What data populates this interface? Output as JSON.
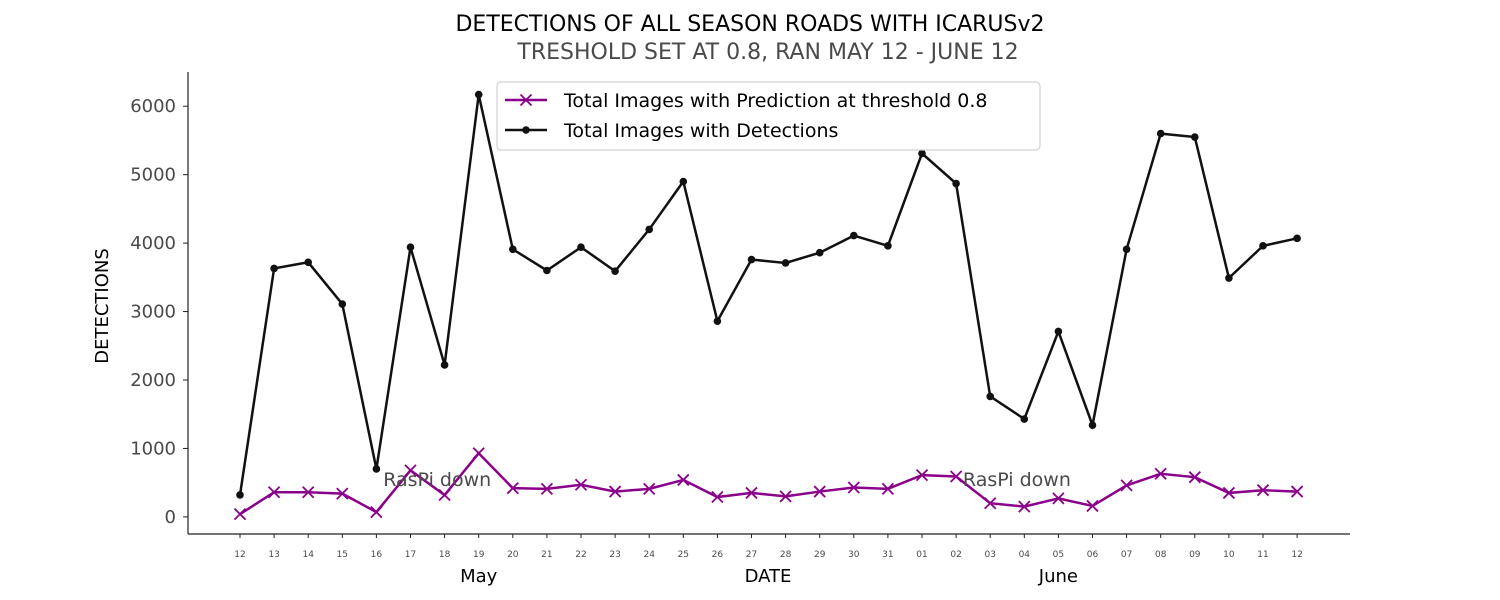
{
  "chart_data": {
    "type": "line",
    "title": "DETECTIONS OF ALL SEASON ROADS WITH ICARUSv2",
    "subtitle": "TRESHOLD SET AT 0.8, RAN MAY 12 - JUNE 12",
    "xlabel": "DATE",
    "ylabel": "DETECTIONS",
    "ylim": [
      -250,
      6500
    ],
    "yticks": [
      0,
      1000,
      2000,
      3000,
      4000,
      5000,
      6000
    ],
    "categories": [
      "12",
      "13",
      "14",
      "15",
      "16",
      "17",
      "18",
      "19",
      "20",
      "21",
      "22",
      "23",
      "24",
      "25",
      "26",
      "27",
      "28",
      "29",
      "30",
      "31",
      "01",
      "02",
      "03",
      "04",
      "05",
      "06",
      "07",
      "08",
      "09",
      "10",
      "11",
      "12"
    ],
    "month_labels": [
      {
        "label": "May",
        "at_index": 7
      },
      {
        "label": "June",
        "at_index": 24
      }
    ],
    "series": [
      {
        "name": "Total Images with Prediction at threshold 0.8",
        "color": "#8b008b",
        "marker": "x",
        "values": [
          40,
          360,
          360,
          340,
          70,
          680,
          320,
          930,
          420,
          410,
          470,
          370,
          410,
          540,
          290,
          350,
          300,
          370,
          430,
          410,
          610,
          590,
          200,
          150,
          270,
          160,
          460,
          630,
          580,
          350,
          390,
          370
        ]
      },
      {
        "name": "Total Images with Detections",
        "color": "#111111",
        "marker": "o",
        "values": [
          320,
          3630,
          3720,
          3110,
          700,
          3940,
          2220,
          6170,
          3910,
          3600,
          3940,
          3590,
          4200,
          4900,
          2860,
          3760,
          3710,
          3860,
          4110,
          3960,
          5310,
          4870,
          1760,
          1430,
          2710,
          1340,
          3910,
          5600,
          5550,
          3490,
          3960,
          4070
        ]
      }
    ],
    "annotations": [
      {
        "text": "RasPi down",
        "x_index": 4.2,
        "y": 550
      },
      {
        "text": "RasPi down",
        "x_index": 21.2,
        "y": 550
      }
    ],
    "legend_position": "top-center",
    "grid": false
  }
}
